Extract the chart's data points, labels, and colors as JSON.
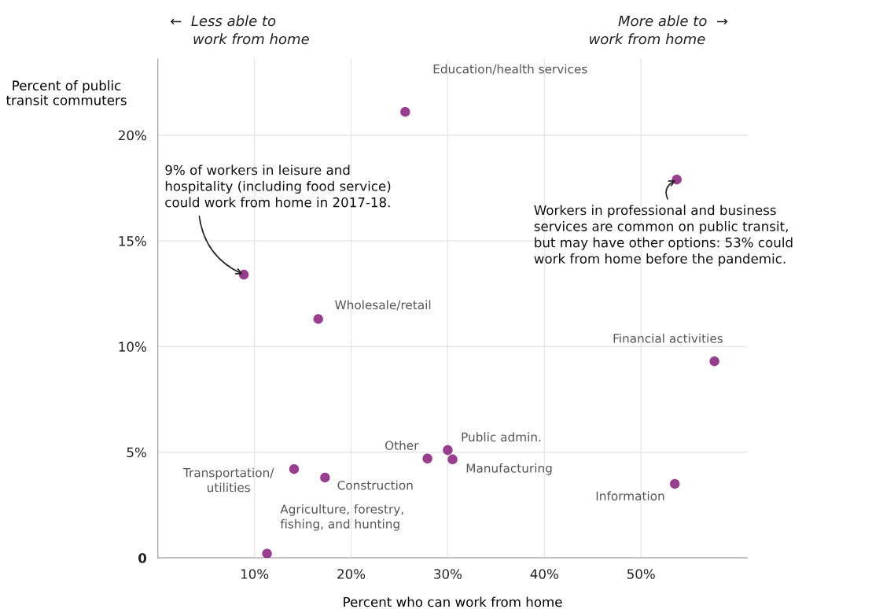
{
  "chart_data": {
    "type": "scatter",
    "xlabel": "Percent who can work from home",
    "ylabel": "Percent of public\ntransit commuters",
    "x": [
      25.6,
      53.7,
      8.9,
      16.6,
      57.6,
      27.9,
      30.0,
      30.5,
      14.1,
      17.3,
      53.5,
      11.3
    ],
    "series": [
      {
        "color": "#993d8f",
        "values": [
          21.1,
          17.9,
          13.4,
          11.3,
          9.3,
          4.7,
          5.1,
          4.66,
          4.2,
          3.8,
          3.5,
          0.2
        ]
      }
    ],
    "xlim": [
      0,
      61
    ],
    "ylim": [
      0,
      23.6
    ],
    "xticks": [
      {
        "value": 10,
        "label": "10%"
      },
      {
        "value": 20,
        "label": "20%"
      },
      {
        "value": 30,
        "label": "30%"
      },
      {
        "value": 40,
        "label": "40%"
      },
      {
        "value": 50,
        "label": "50%"
      }
    ],
    "yticks": [
      {
        "value": 0,
        "label": "0"
      },
      {
        "value": 5,
        "label": "5%"
      },
      {
        "value": 10,
        "label": "10%"
      },
      {
        "value": 15,
        "label": "15%"
      },
      {
        "value": 20,
        "label": "20%"
      }
    ],
    "grid": true,
    "marker": "circle",
    "annotations": [
      {
        "text": "Wholesale/retail",
        "x": 16.6,
        "y": 11.3
      },
      {
        "text": "Financial activities",
        "x": 57.6,
        "y": 9.3
      },
      {
        "text": "Other",
        "x": 27.9,
        "y": 4.7
      },
      {
        "text": "Public admin.",
        "x": 30.0,
        "y": 5.1
      },
      {
        "text": "Manufacturing",
        "x": 30.5,
        "y": 4.66
      },
      {
        "text": "Transportation/\nutilities",
        "x": 14.1,
        "y": 4.2
      },
      {
        "text": "Construction",
        "x": 17.3,
        "y": 3.8
      },
      {
        "text": "Information",
        "x": 53.5,
        "y": 3.5
      },
      {
        "text": "Agriculture, forestry,\nfishing, and hunting",
        "x": 11.3,
        "y": 0.2
      },
      {
        "text": "9% of workers in leisure and\nhospitality (including food service)\ncould work from home in 2017-18.",
        "x": 8.9,
        "y": 13.4
      },
      {
        "text": "Workers in professional and business\nservices are common on public transit,\nbut may have other options: 53% could\nwork from home before the pandemic.",
        "x": 53.7,
        "y": 17.9
      },
      "←  Less able to\n     work from home",
      "More able to  →\nwork from home     ",
      "Education/health services"
    ]
  }
}
